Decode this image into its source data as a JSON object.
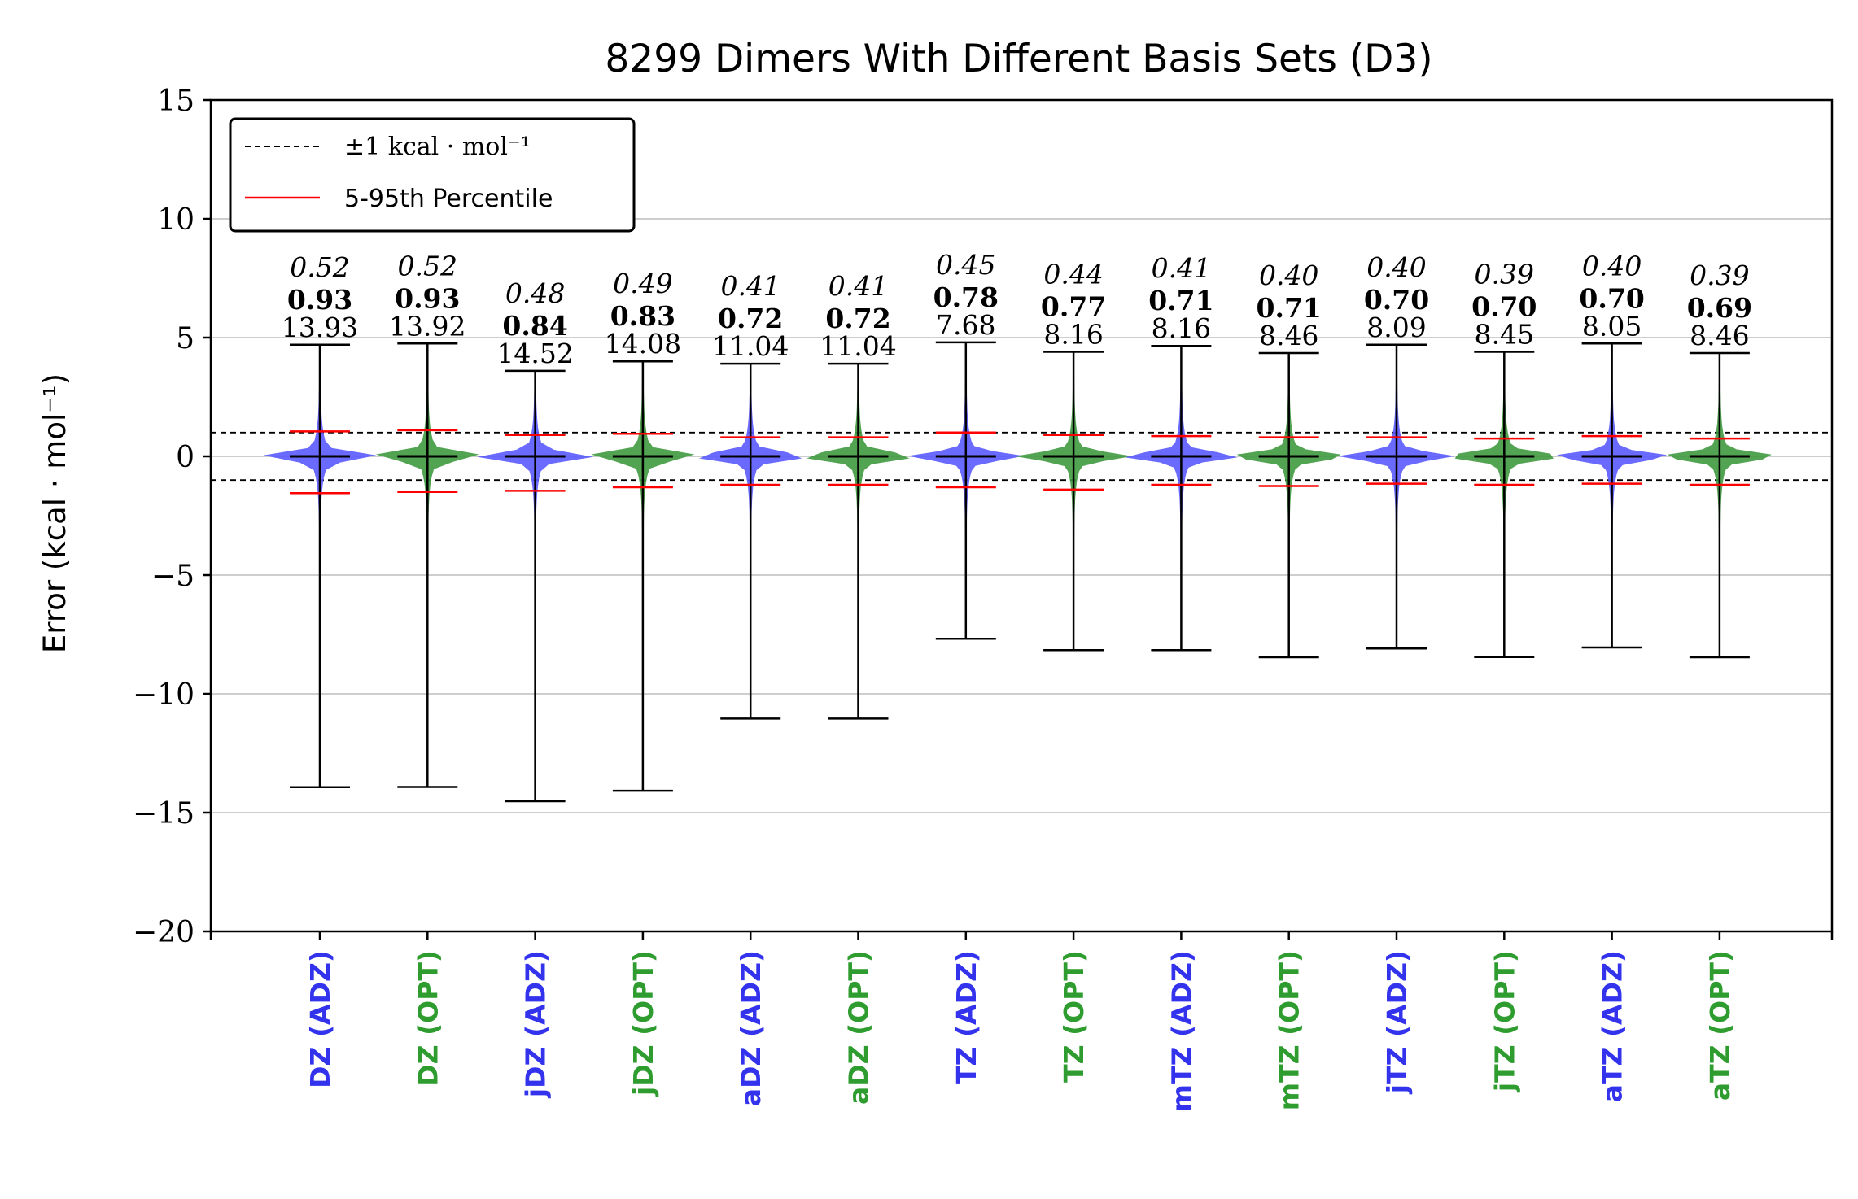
{
  "chart_data": {
    "type": "violin",
    "title": "8299 Dimers With Different Basis Sets (D3)",
    "ylabel": "Error (kcal · mol⁻¹)",
    "xlabel": "",
    "ylim": [
      -20,
      15
    ],
    "yticks": [
      15,
      10,
      5,
      0,
      -5,
      -10,
      -15,
      -20
    ],
    "ytick_labels": [
      "15",
      "10",
      "5",
      "0",
      "−5",
      "−10",
      "−15",
      "−20"
    ],
    "grid": "horizontal",
    "legend": {
      "placement": "top-left",
      "entries": [
        {
          "label": "±1 kcal · mol⁻¹",
          "style": "dashed",
          "color": "#000000"
        },
        {
          "label": "5-95th Percentile",
          "style": "solid",
          "color": "#ff0000"
        }
      ]
    },
    "reference_lines": [
      1,
      -1
    ],
    "colors": {
      "ADZ": "#3333ee",
      "OPT": "#2e9c2e",
      "violin_ADZ": "#5a5aff",
      "violin_OPT": "#3f9a3f",
      "percentile": "#ff0000",
      "whisker": "#000000",
      "grid": "#b0b0b0"
    },
    "categories": [
      "DZ (ADZ)",
      "DZ (OPT)",
      "jDZ (ADZ)",
      "jDZ (OPT)",
      "aDZ (ADZ)",
      "aDZ (OPT)",
      "TZ (ADZ)",
      "TZ (OPT)",
      "mTZ (ADZ)",
      "mTZ (OPT)",
      "jTZ (ADZ)",
      "jTZ (OPT)",
      "aTZ (ADZ)",
      "aTZ (OPT)"
    ],
    "groups": [
      "ADZ",
      "OPT",
      "ADZ",
      "OPT",
      "ADZ",
      "OPT",
      "ADZ",
      "OPT",
      "ADZ",
      "OPT",
      "ADZ",
      "OPT",
      "ADZ",
      "OPT"
    ],
    "mae": [
      "0.52",
      "0.52",
      "0.48",
      "0.49",
      "0.41",
      "0.41",
      "0.45",
      "0.44",
      "0.41",
      "0.40",
      "0.40",
      "0.39",
      "0.40",
      "0.39"
    ],
    "rmse": [
      "0.93",
      "0.93",
      "0.84",
      "0.83",
      "0.72",
      "0.72",
      "0.78",
      "0.77",
      "0.71",
      "0.71",
      "0.70",
      "0.70",
      "0.70",
      "0.69"
    ],
    "maxe": [
      "13.93",
      "13.92",
      "14.52",
      "14.08",
      "11.04",
      "11.04",
      "7.68",
      "8.16",
      "8.16",
      "8.46",
      "8.09",
      "8.45",
      "8.05",
      "8.46"
    ],
    "max": [
      4.7,
      4.75,
      3.6,
      4.0,
      3.9,
      3.9,
      4.8,
      4.4,
      4.65,
      4.35,
      4.7,
      4.4,
      4.75,
      4.35
    ],
    "min": [
      -13.93,
      -13.92,
      -14.52,
      -14.08,
      -11.04,
      -11.04,
      -7.68,
      -8.16,
      -8.16,
      -8.46,
      -8.09,
      -8.45,
      -8.05,
      -8.46
    ],
    "p95": [
      1.05,
      1.1,
      0.9,
      0.95,
      0.8,
      0.8,
      1.0,
      0.9,
      0.85,
      0.8,
      0.8,
      0.75,
      0.85,
      0.75
    ],
    "p5": [
      -1.55,
      -1.5,
      -1.45,
      -1.3,
      -1.2,
      -1.2,
      -1.3,
      -1.4,
      -1.2,
      -1.25,
      -1.15,
      -1.2,
      -1.15,
      -1.2
    ],
    "median": [
      0,
      0,
      0,
      0,
      0,
      0,
      0,
      0,
      0,
      0,
      0,
      0,
      0,
      0
    ]
  }
}
